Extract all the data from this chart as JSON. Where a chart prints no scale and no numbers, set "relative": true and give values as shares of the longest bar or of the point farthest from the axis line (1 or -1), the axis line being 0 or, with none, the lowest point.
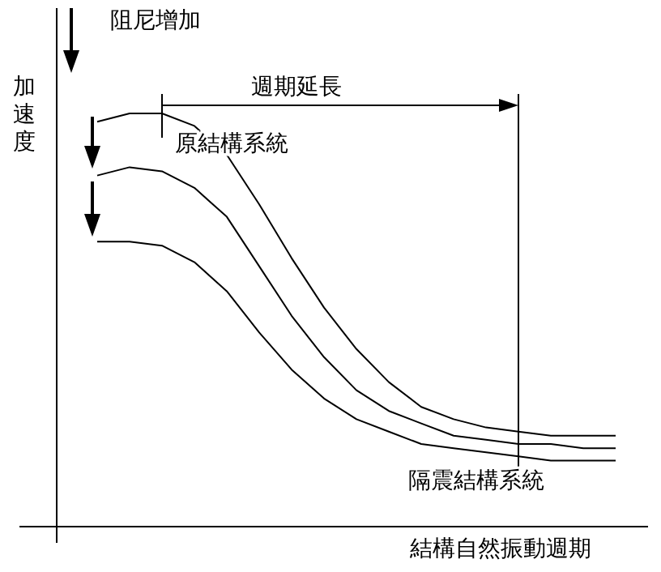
{
  "chart_data": {
    "type": "line",
    "relative": true,
    "xlabel": "結構自然振動週期",
    "ylabel": "加速度",
    "annotations": [
      "阻尼增加",
      "週期延長",
      "原結構系統",
      "隔震結構系統"
    ],
    "categories": [
      null,
      null,
      null,
      null,
      null,
      null,
      null,
      null,
      null,
      null,
      null,
      null,
      null,
      null,
      null,
      null,
      null
    ],
    "series": [
      {
        "color": "#000000",
        "values": [
          0.98,
          1,
          1,
          0.97,
          0.9,
          0.78,
          0.65,
          0.53,
          0.43,
          0.35,
          0.29,
          0.26,
          0.24,
          0.23,
          0.22,
          0.22,
          0.22
        ]
      },
      {
        "color": "#000000",
        "values": [
          0.85,
          0.87,
          0.86,
          0.82,
          0.75,
          0.63,
          0.51,
          0.41,
          0.33,
          0.28,
          0.25,
          0.22,
          0.21,
          0.2,
          0.2,
          0.19,
          0.19
        ]
      },
      {
        "color": "#000000",
        "values": [
          0.69,
          0.69,
          0.68,
          0.64,
          0.57,
          0.47,
          0.38,
          0.31,
          0.26,
          0.23,
          0.2,
          0.19,
          0.18,
          0.17,
          0.16,
          0.16,
          0.16
        ]
      }
    ]
  }
}
